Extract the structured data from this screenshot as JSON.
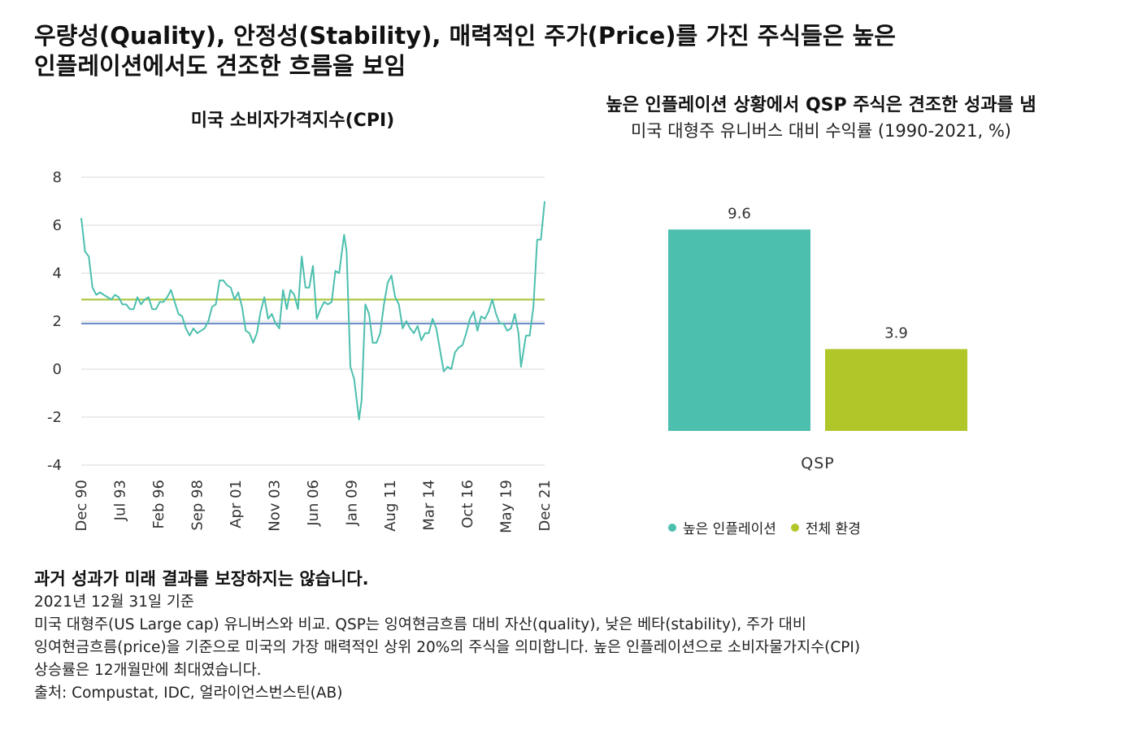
{
  "header": {
    "title_line1": "우량성(Quality), 안정성(Stability), 매력적인 주가(Price)를 가진 주식들은 높은",
    "title_line2": "인플레이션에서도 견조한 흐름을 보임"
  },
  "colors": {
    "cpi_line": "#4dbfae",
    "green_ref": "#a8c43a",
    "blue_ref": "#6f8fc8",
    "grid": "#d9d9d9",
    "bar_high_inflation": "#4dbfae",
    "bar_all": "#b1c729"
  },
  "chart_data": [
    {
      "type": "line",
      "title": "미국 소비자가격지수(CPI)",
      "ylim": [
        -4,
        8
      ],
      "y_ticks": [
        "8",
        "6",
        "4",
        "2",
        "0",
        "-2",
        "-4"
      ],
      "x_tick_labels": [
        "Dec 90",
        "Jul 93",
        "Feb 96",
        "Sep 98",
        "Apr 01",
        "Nov 03",
        "Jun 06",
        "Jan 09",
        "Aug 11",
        "Mar 14",
        "Oct 16",
        "May 19",
        "Dec 21"
      ],
      "reference_lines": [
        2.9,
        1.9
      ],
      "grid": true,
      "series": [
        {
          "x": [
            "Dec 90",
            "Mar 91",
            "Jun 91",
            "Sep 91",
            "Dec 91",
            "Mar 92",
            "Jun 92",
            "Sep 92",
            "Dec 92",
            "Mar 93",
            "Jun 93",
            "Sep 93",
            "Dec 93",
            "Mar 94",
            "Jun 94",
            "Sep 94",
            "Dec 94",
            "Mar 95",
            "Jun 95",
            "Sep 95",
            "Dec 95",
            "Mar 96",
            "Jun 96",
            "Sep 96",
            "Dec 96",
            "Mar 97",
            "Jun 97",
            "Sep 97",
            "Dec 97",
            "Mar 98",
            "Jun 98",
            "Sep 98",
            "Dec 98",
            "Mar 99",
            "Jun 99",
            "Sep 99",
            "Dec 99",
            "Mar 00",
            "Jun 00",
            "Sep 00",
            "Dec 00",
            "Mar 01",
            "Jun 01",
            "Sep 01",
            "Dec 01",
            "Mar 02",
            "Jun 02",
            "Sep 02",
            "Dec 02",
            "Mar 03",
            "Jun 03",
            "Sep 03",
            "Dec 03",
            "Mar 04",
            "Jun 04",
            "Sep 04",
            "Dec 04",
            "Mar 05",
            "Jun 05",
            "Sep 05",
            "Dec 05",
            "Mar 06",
            "Jun 06",
            "Sep 06",
            "Dec 06",
            "Mar 07",
            "Jun 07",
            "Sep 07",
            "Dec 07",
            "Mar 08",
            "Jul 08",
            "Sep 08",
            "Dec 08",
            "Mar 09",
            "Jul 09",
            "Sep 09",
            "Dec 09",
            "Mar 10",
            "Jun 10",
            "Sep 10",
            "Dec 10",
            "Mar 11",
            "Jun 11",
            "Sep 11",
            "Dec 11",
            "Mar 12",
            "Jun 12",
            "Sep 12",
            "Dec 12",
            "Mar 13",
            "Jun 13",
            "Sep 13",
            "Dec 13",
            "Mar 14",
            "Jun 14",
            "Sep 14",
            "Dec 14",
            "Mar 15",
            "Jun 15",
            "Sep 15",
            "Dec 15",
            "Mar 16",
            "Jun 16",
            "Sep 16",
            "Dec 16",
            "Mar 17",
            "Jun 17",
            "Sep 17",
            "Dec 17",
            "Mar 18",
            "Jun 18",
            "Sep 18",
            "Dec 18",
            "Mar 19",
            "Jun 19",
            "Sep 19",
            "Dec 19",
            "Mar 20",
            "May 20",
            "Sep 20",
            "Dec 20",
            "Mar 21",
            "Jun 21",
            "Sep 21",
            "Dec 21"
          ],
          "y": [
            6.3,
            4.9,
            4.7,
            3.4,
            3.1,
            3.2,
            3.1,
            3.0,
            2.9,
            3.1,
            3.0,
            2.7,
            2.7,
            2.5,
            2.5,
            3.0,
            2.7,
            2.9,
            3.0,
            2.5,
            2.5,
            2.8,
            2.8,
            3.0,
            3.3,
            2.8,
            2.3,
            2.2,
            1.7,
            1.4,
            1.7,
            1.5,
            1.6,
            1.7,
            2.0,
            2.6,
            2.7,
            3.7,
            3.7,
            3.5,
            3.4,
            2.9,
            3.2,
            2.6,
            1.6,
            1.5,
            1.1,
            1.5,
            2.4,
            3.0,
            2.1,
            2.3,
            1.9,
            1.7,
            3.3,
            2.5,
            3.3,
            3.1,
            2.5,
            4.7,
            3.4,
            3.4,
            4.3,
            2.1,
            2.5,
            2.8,
            2.7,
            2.8,
            4.1,
            4.0,
            5.6,
            4.9,
            0.1,
            -0.4,
            -2.1,
            -1.3,
            2.7,
            2.3,
            1.1,
            1.1,
            1.5,
            2.7,
            3.6,
            3.9,
            3.0,
            2.7,
            1.7,
            2.0,
            1.7,
            1.5,
            1.8,
            1.2,
            1.5,
            1.5,
            2.1,
            1.7,
            0.8,
            -0.1,
            0.1,
            0.0,
            0.7,
            0.9,
            1.0,
            1.5,
            2.1,
            2.4,
            1.6,
            2.2,
            2.1,
            2.4,
            2.9,
            2.3,
            1.9,
            1.9,
            1.6,
            1.7,
            2.3,
            1.5,
            0.1,
            1.4,
            1.4,
            2.6,
            5.4,
            5.4,
            7.0
          ]
        }
      ]
    },
    {
      "type": "bar",
      "title": "높은 인플레이션 상황에서 QSP 주식은 견조한 성과를 냄",
      "subtitle": "미국 대형주 유니버스 대비 수익률 (1990-2021, %)",
      "categories": [
        "QSP"
      ],
      "series": [
        {
          "name": "높은 인플레이션",
          "values": [
            9.6
          ]
        },
        {
          "name": "전체 환경",
          "values": [
            3.9
          ]
        }
      ],
      "data_labels": [
        "9.6",
        "3.9"
      ],
      "legend_placement": "bottom"
    }
  ],
  "footer": {
    "disclaimer": "과거 성과가 미래 결과를 보장하지는 않습니다.",
    "date_note": "2021년 12월 31일 기준",
    "note_line1": "미국 대형주(US Large cap) 유니버스와 비교. QSP는 잉여현금흐름 대비 자산(quality), 낮은 베타(stability), 주가 대비",
    "note_line2": "잉여현금흐름(price)을 기준으로 미국의 가장 매력적인 상위 20%의 주식을 의미합니다. 높은 인플레이션으로 소비자물가지수(CPI)",
    "note_line3": "상승률은 12개월만에 최대였습니다.",
    "source": "출처: Compustat, IDC, 얼라이언스번스틴(AB)"
  }
}
